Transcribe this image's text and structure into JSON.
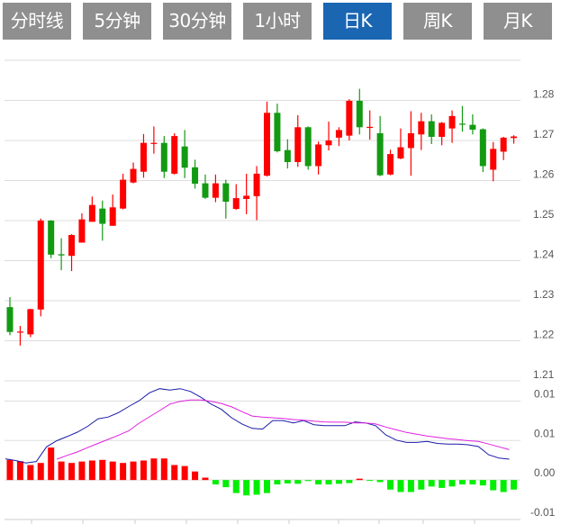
{
  "tabs": [
    {
      "label": "分时线",
      "active": false
    },
    {
      "label": "5分钟",
      "active": false
    },
    {
      "label": "30分钟",
      "active": false
    },
    {
      "label": "1小时",
      "active": false
    },
    {
      "label": "日K",
      "active": true
    },
    {
      "label": "周K",
      "active": false
    },
    {
      "label": "月K",
      "active": false
    }
  ],
  "colors": {
    "up": "#ff0000",
    "down": "#129a12",
    "hist_up": "#ff0000",
    "hist_down": "#00ee00",
    "dif": "#1a1aa8",
    "dea": "#e020e0",
    "active_tab": "#1a66b3",
    "tab": "#8f8f8f",
    "grid": "#dddddd"
  },
  "chart_data": [
    {
      "type": "candlestick",
      "ylim": [
        1.21,
        1.29
      ],
      "yticks": [
        1.28,
        1.27,
        1.26,
        1.25,
        1.24,
        1.23,
        1.22,
        1.21
      ],
      "ytick_labels": [
        "1.28",
        "1.27",
        "1.26",
        "1.25",
        "1.24",
        "1.23",
        "1.22",
        "1.21"
      ],
      "grid": true,
      "ohlc_fields": [
        "open",
        "high",
        "low",
        "close"
      ],
      "candles": [
        [
          1.2284,
          1.2309,
          1.2214,
          1.2222
        ],
        [
          1.2222,
          1.2237,
          1.2188,
          1.2223
        ],
        [
          1.2216,
          1.228,
          1.2209,
          1.2279
        ],
        [
          1.2278,
          1.2505,
          1.2261,
          1.25
        ],
        [
          1.25,
          1.2501,
          1.2406,
          1.2415
        ],
        [
          1.2416,
          1.2456,
          1.2376,
          1.2413
        ],
        [
          1.2412,
          1.2466,
          1.2374,
          1.2464
        ],
        [
          1.2445,
          1.2518,
          1.2445,
          1.2503
        ],
        [
          1.2497,
          1.256,
          1.2497,
          1.2539
        ],
        [
          1.253,
          1.255,
          1.245,
          1.2492
        ],
        [
          1.2487,
          1.2565,
          1.2487,
          1.2533
        ],
        [
          1.253,
          1.2617,
          1.2528,
          1.2602
        ],
        [
          1.2595,
          1.2645,
          1.2593,
          1.2629
        ],
        [
          1.2622,
          1.2716,
          1.2607,
          1.2694
        ],
        [
          1.2693,
          1.2735,
          1.2667,
          1.2694
        ],
        [
          1.2694,
          1.2711,
          1.2606,
          1.2622
        ],
        [
          1.2617,
          1.2718,
          1.2615,
          1.2711
        ],
        [
          1.2685,
          1.2726,
          1.2606,
          1.2632
        ],
        [
          1.2633,
          1.2652,
          1.258,
          1.2592
        ],
        [
          1.2593,
          1.2615,
          1.2554,
          1.2557
        ],
        [
          1.2557,
          1.2615,
          1.2546,
          1.2593
        ],
        [
          1.2593,
          1.2602,
          1.2505,
          1.2547
        ],
        [
          1.2529,
          1.2591,
          1.2527,
          1.2556
        ],
        [
          1.2554,
          1.2617,
          1.2516,
          1.2562
        ],
        [
          1.2561,
          1.2636,
          1.2501,
          1.2617
        ],
        [
          1.2612,
          1.2797,
          1.261,
          1.2769
        ],
        [
          1.2769,
          1.2792,
          1.267,
          1.2673
        ],
        [
          1.2676,
          1.2703,
          1.263,
          1.2646
        ],
        [
          1.2646,
          1.2763,
          1.2634,
          1.2733
        ],
        [
          1.2733,
          1.2735,
          1.2627,
          1.2636
        ],
        [
          1.2636,
          1.2697,
          1.2615,
          1.269
        ],
        [
          1.2688,
          1.2747,
          1.2675,
          1.27
        ],
        [
          1.2707,
          1.2733,
          1.2686,
          1.2726
        ],
        [
          1.2712,
          1.2803,
          1.27,
          1.2799
        ],
        [
          1.2799,
          1.2829,
          1.2715,
          1.2733
        ],
        [
          1.2733,
          1.2775,
          1.2702,
          1.2734
        ],
        [
          1.2718,
          1.2761,
          1.2611,
          1.2613
        ],
        [
          1.2615,
          1.2677,
          1.2613,
          1.2666
        ],
        [
          1.2655,
          1.273,
          1.2653,
          1.2683
        ],
        [
          1.2681,
          1.2773,
          1.2612,
          1.2718
        ],
        [
          1.2715,
          1.2769,
          1.2676,
          1.2748
        ],
        [
          1.2748,
          1.2765,
          1.2691,
          1.2709
        ],
        [
          1.2709,
          1.2746,
          1.2688,
          1.2744
        ],
        [
          1.273,
          1.2775,
          1.2694,
          1.2761
        ],
        [
          1.2742,
          1.2786,
          1.2722,
          1.274
        ],
        [
          1.2739,
          1.2765,
          1.2715,
          1.2727
        ],
        [
          1.2728,
          1.273,
          1.2621,
          1.2636
        ],
        [
          1.2627,
          1.2696,
          1.2598,
          1.2679
        ],
        [
          1.2672,
          1.2709,
          1.2651,
          1.2707
        ],
        [
          1.2706,
          1.2713,
          1.2692,
          1.271
        ]
      ]
    },
    {
      "type": "macd",
      "ylim": [
        -0.005,
        0.0125
      ],
      "yticks": [
        0.01,
        0.005,
        0.0,
        -0.005
      ],
      "ytick_labels": [
        "0.01",
        "0.01",
        "0.00",
        "-0.01"
      ],
      "grid": true,
      "histogram": [
        0.00255,
        0.00238,
        0.0019,
        0.00216,
        0.00411,
        0.00234,
        0.00216,
        0.00234,
        0.00247,
        0.00255,
        0.00234,
        0.00216,
        0.00234,
        0.00247,
        0.00273,
        0.00273,
        0.0019,
        0.00177,
        0.00108,
        0.0003,
        -0.00056,
        -0.00091,
        -0.00165,
        -0.00195,
        -0.00186,
        -0.00165,
        -0.00056,
        -0.00043,
        -0.00048,
        -0.00013,
        -0.00056,
        -0.00056,
        -0.00048,
        -0.00039,
        0.00017,
        -2e-05,
        -0.00026,
        -0.00121,
        -0.00152,
        -0.00152,
        -0.00121,
        -0.00082,
        -0.001,
        -0.00082,
        -0.00056,
        -0.00056,
        -0.00069,
        -0.0013,
        -0.00152,
        -0.00121
      ],
      "dif": [
        0.00268,
        0.00247,
        0.00216,
        0.00234,
        0.0042,
        0.00498,
        0.0055,
        0.00606,
        0.0068,
        0.00775,
        0.00797,
        0.00853,
        0.00931,
        0.01004,
        0.01104,
        0.01156,
        0.01139,
        0.01156,
        0.01121,
        0.01048,
        0.00961,
        0.00896,
        0.00788,
        0.0071,
        0.00654,
        0.00645,
        0.00753,
        0.00753,
        0.00723,
        0.00753,
        0.00701,
        0.00688,
        0.00688,
        0.00688,
        0.00736,
        0.00723,
        0.00688,
        0.00571,
        0.00506,
        0.00476,
        0.00476,
        0.00489,
        0.00463,
        0.00455,
        0.00455,
        0.00446,
        0.00424,
        0.0032,
        0.00277,
        0.00264
      ],
      "dea": [
        null,
        null,
        null,
        null,
        null,
        0.00264,
        0.00312,
        0.00355,
        0.00411,
        0.00463,
        0.00515,
        0.00567,
        0.00623,
        0.0072,
        0.008,
        0.0088,
        0.00961,
        0.00996,
        0.01013,
        0.01013,
        0.00996,
        0.0097,
        0.00926,
        0.00866,
        0.0081,
        0.00797,
        0.00788,
        0.00779,
        0.00766,
        0.00758,
        0.00745,
        0.00736,
        0.00732,
        0.00732,
        0.00723,
        0.00723,
        0.0071,
        0.00671,
        0.00636,
        0.00602,
        0.0058,
        0.00558,
        0.00541,
        0.00524,
        0.00511,
        0.00498,
        0.00489,
        0.00455,
        0.0042,
        0.00385
      ]
    }
  ]
}
